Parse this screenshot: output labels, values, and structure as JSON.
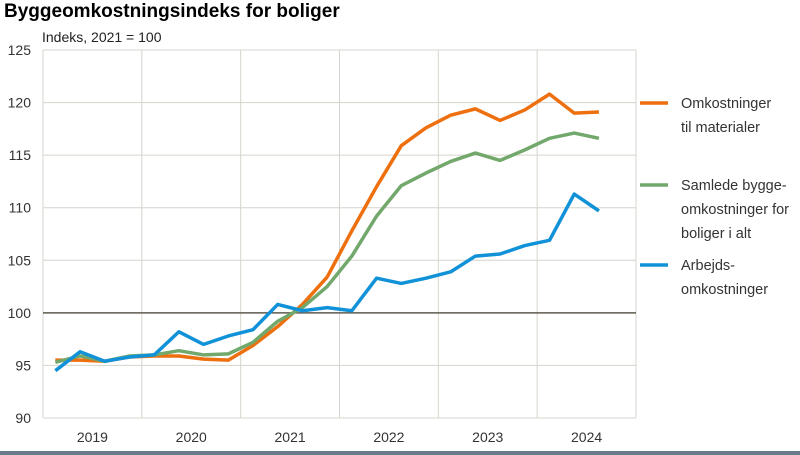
{
  "chart_data": {
    "type": "line",
    "title": "Byggeomkostningsindeks for boliger",
    "ylabel": "Indeks, 2021 = 100",
    "xlabel": "",
    "ylim": [
      90,
      125
    ],
    "yticks": [
      90,
      95,
      100,
      105,
      110,
      115,
      120,
      125
    ],
    "reference_line": 100,
    "grid": true,
    "legend_placement": "right",
    "categories": [
      "2019",
      "2020",
      "2021",
      "2022",
      "2023",
      "2024"
    ],
    "x": [
      "2019K1",
      "2019K2",
      "2019K3",
      "2019K4",
      "2020K1",
      "2020K2",
      "2020K3",
      "2020K4",
      "2021K1",
      "2021K2",
      "2021K3",
      "2021K4",
      "2022K1",
      "2022K2",
      "2022K3",
      "2022K4",
      "2023K1",
      "2023K2",
      "2023K3",
      "2023K4",
      "2024K1",
      "2024K2",
      "2024K3"
    ],
    "series": [
      {
        "name": "Omkostninger til materialer",
        "legend_lines": [
          "Omkostninger",
          "til materialer"
        ],
        "color": "#ee6f0e",
        "values": [
          95.5,
          95.5,
          95.4,
          95.8,
          95.9,
          95.9,
          95.6,
          95.5,
          96.9,
          98.7,
          100.8,
          103.4,
          107.8,
          112.0,
          115.9,
          117.6,
          118.8,
          119.4,
          118.3,
          119.3,
          120.8,
          119.0,
          119.1
        ]
      },
      {
        "name": "Samlede byggeomkostninger for boliger i alt",
        "legend_lines": [
          "Samlede bygge-",
          "omkostninger for",
          "boliger i alt"
        ],
        "color": "#72a86c",
        "values": [
          95.3,
          95.9,
          95.4,
          95.9,
          96.0,
          96.4,
          96.0,
          96.1,
          97.2,
          99.2,
          100.5,
          102.5,
          105.4,
          109.2,
          112.1,
          113.3,
          114.4,
          115.2,
          114.5,
          115.5,
          116.6,
          117.1,
          116.6
        ]
      },
      {
        "name": "Arbejdsomkostninger",
        "legend_lines": [
          "Arbejds-",
          "omkostninger"
        ],
        "color": "#1192d8",
        "values": [
          94.5,
          96.3,
          95.4,
          95.8,
          96.0,
          98.2,
          97.0,
          97.8,
          98.4,
          100.8,
          100.2,
          100.5,
          100.2,
          103.3,
          102.8,
          103.3,
          103.9,
          105.4,
          105.6,
          106.4,
          106.9,
          111.3,
          109.7
        ]
      }
    ]
  }
}
